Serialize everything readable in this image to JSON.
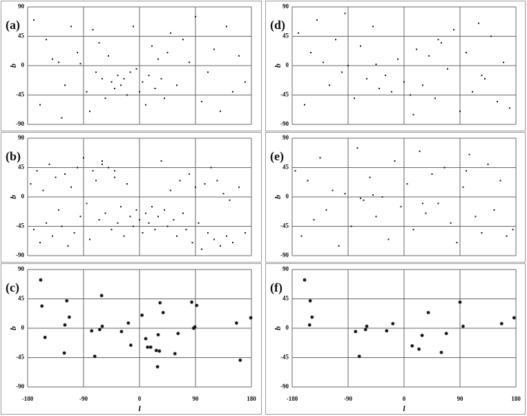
{
  "chart_data": [
    {
      "type": "scatter",
      "label": "(a)",
      "y_label": "b",
      "show_xtick_labels": false,
      "marker": "dot",
      "color": "#111111",
      "xlim": [
        -180,
        180
      ],
      "ylim": [
        -90,
        90
      ],
      "xticks": [
        -180,
        -90,
        0,
        90,
        180
      ],
      "yticks": [
        -90,
        -45,
        0,
        45,
        90
      ],
      "x": [
        -170,
        -160,
        -150,
        -140,
        -130,
        -120,
        -110,
        -100,
        -95,
        -85,
        -80,
        -75,
        -70,
        -65,
        -60,
        -55,
        -50,
        -45,
        -40,
        -35,
        -30,
        -25,
        -20,
        -15,
        -10,
        -5,
        0,
        5,
        10,
        15,
        20,
        25,
        30,
        35,
        40,
        45,
        50,
        60,
        70,
        80,
        90,
        100,
        110,
        120,
        130,
        140,
        150,
        160,
        170,
        -125
      ],
      "y": [
        70,
        -60,
        40,
        10,
        5,
        -30,
        60,
        20,
        3,
        -40,
        -70,
        55,
        -10,
        35,
        -20,
        -50,
        15,
        -25,
        -35,
        -15,
        -30,
        -20,
        -45,
        -10,
        60,
        -5,
        -40,
        -25,
        -60,
        -15,
        30,
        -35,
        10,
        -20,
        -50,
        20,
        50,
        -30,
        40,
        5,
        75,
        -55,
        -10,
        25,
        -70,
        60,
        -40,
        15,
        -25,
        -80
      ]
    },
    {
      "type": "scatter",
      "label": "(b)",
      "y_label": "b",
      "show_xtick_labels": false,
      "marker": "dot",
      "color": "#111111",
      "xlim": [
        -180,
        180
      ],
      "ylim": [
        -90,
        90
      ],
      "xticks": [
        -180,
        -90,
        0,
        90,
        180
      ],
      "yticks": [
        -90,
        -45,
        0,
        45,
        90
      ],
      "x": [
        -175,
        -170,
        -165,
        -160,
        -155,
        -150,
        -145,
        -140,
        -135,
        -130,
        -125,
        -120,
        -115,
        -110,
        -105,
        -100,
        -95,
        -90,
        -85,
        -80,
        -75,
        -70,
        -65,
        -60,
        -55,
        -50,
        -45,
        -40,
        -35,
        -30,
        -25,
        -20,
        -15,
        -10,
        -5,
        0,
        5,
        10,
        15,
        20,
        25,
        30,
        35,
        40,
        45,
        50,
        55,
        60,
        65,
        70,
        75,
        80,
        85,
        90,
        95,
        100,
        105,
        110,
        115,
        120,
        125,
        130,
        135,
        140,
        145,
        150,
        160,
        170,
        -60,
        -40
      ],
      "y": [
        20,
        -50,
        40,
        -70,
        10,
        -40,
        50,
        -60,
        30,
        -20,
        -45,
        35,
        -75,
        15,
        -55,
        45,
        -30,
        60,
        -10,
        -65,
        40,
        25,
        -35,
        55,
        -25,
        45,
        -50,
        30,
        -40,
        -15,
        -60,
        20,
        -30,
        -45,
        -20,
        -35,
        -55,
        -25,
        -40,
        -15,
        -50,
        -30,
        55,
        -20,
        -45,
        10,
        -35,
        -60,
        25,
        -25,
        -50,
        35,
        -70,
        15,
        -40,
        -80,
        20,
        -55,
        45,
        -65,
        25,
        -75,
        5,
        -60,
        -5,
        -70,
        15,
        -55,
        50,
        40
      ]
    },
    {
      "type": "scatter",
      "label": "(c)",
      "y_label": "b",
      "x_label": "l",
      "show_xtick_labels": true,
      "marker": "star",
      "color": "#111111",
      "xlim": [
        -180,
        180
      ],
      "ylim": [
        -90,
        90
      ],
      "xticks": [
        -180,
        -90,
        0,
        90,
        180
      ],
      "yticks": [
        -90,
        -45,
        0,
        45,
        90
      ],
      "x": [
        -159,
        -157,
        -152,
        -117,
        -120,
        -113,
        -121,
        -61,
        -60,
        -64,
        -77,
        -72,
        -29,
        -18,
        -14,
        4,
        10,
        13,
        18,
        27,
        32,
        33,
        38,
        29,
        30,
        57,
        62,
        84,
        92,
        89,
        87,
        156,
        162,
        179
      ],
      "y": [
        74,
        34,
        -14,
        42,
        5,
        17,
        -38,
        50,
        3,
        -2,
        -4,
        -43,
        -5,
        8,
        -26,
        20,
        -16,
        -29,
        -29,
        -34,
        -35,
        39,
        24,
        -59,
        -10,
        -39,
        -8,
        40,
        35,
        2,
        0,
        8,
        -49,
        16
      ]
    },
    {
      "type": "scatter",
      "label": "(d)",
      "y_label": "b",
      "show_xtick_labels": false,
      "marker": "dot",
      "color": "#111111",
      "xlim": [
        -180,
        180
      ],
      "ylim": [
        -90,
        90
      ],
      "xticks": [
        -180,
        -90,
        0,
        90,
        180
      ],
      "yticks": [
        -90,
        -45,
        0,
        45,
        90
      ],
      "x": [
        -170,
        -160,
        -150,
        -140,
        -130,
        -120,
        -110,
        -100,
        -90,
        -80,
        -70,
        -60,
        -50,
        -40,
        -30,
        -20,
        -10,
        0,
        10,
        20,
        30,
        40,
        50,
        60,
        70,
        80,
        90,
        100,
        110,
        120,
        130,
        140,
        150,
        160,
        170,
        -95,
        -45,
        15,
        55,
        125
      ],
      "y": [
        50,
        -60,
        20,
        70,
        5,
        -30,
        40,
        -10,
        0,
        -50,
        30,
        -20,
        60,
        -35,
        -15,
        -40,
        10,
        -25,
        -45,
        25,
        -30,
        15,
        -50,
        35,
        -5,
        55,
        -70,
        20,
        -40,
        65,
        -20,
        45,
        -55,
        5,
        -65,
        80,
        2,
        -75,
        40,
        -15
      ]
    },
    {
      "type": "scatter",
      "label": "(e)",
      "y_label": "b",
      "show_xtick_labels": false,
      "marker": "dot",
      "color": "#111111",
      "xlim": [
        -180,
        180
      ],
      "ylim": [
        -90,
        90
      ],
      "xticks": [
        -180,
        -90,
        0,
        90,
        180
      ],
      "yticks": [
        -90,
        -45,
        0,
        45,
        90
      ],
      "x": [
        -175,
        -165,
        -155,
        -145,
        -135,
        -125,
        -115,
        -105,
        -95,
        -85,
        -75,
        -65,
        -55,
        -45,
        -35,
        -25,
        -15,
        -5,
        5,
        15,
        25,
        35,
        45,
        55,
        65,
        75,
        85,
        95,
        105,
        115,
        125,
        135,
        145,
        155,
        165,
        175,
        -70,
        -50,
        30,
        100
      ],
      "y": [
        40,
        -60,
        25,
        -35,
        60,
        -20,
        10,
        -75,
        5,
        -45,
        75,
        -5,
        30,
        -30,
        0,
        -65,
        55,
        -15,
        20,
        -50,
        70,
        -25,
        35,
        -10,
        45,
        -40,
        -70,
        15,
        65,
        -30,
        -55,
        50,
        -20,
        25,
        -60,
        -50,
        -2,
        3,
        -10,
        40
      ]
    },
    {
      "type": "scatter",
      "label": "(f)",
      "y_label": "b",
      "x_label": "l",
      "show_xtick_labels": true,
      "marker": "star",
      "color": "#111111",
      "xlim": [
        -180,
        180
      ],
      "ylim": [
        -90,
        90
      ],
      "xticks": [
        -180,
        -90,
        0,
        90,
        180
      ],
      "yticks": [
        -90,
        -45,
        0,
        45,
        90
      ],
      "x": [
        -160,
        -151,
        -148,
        -152,
        -78,
        -72,
        -62,
        -60,
        -28,
        -18,
        13,
        24,
        29,
        39,
        60,
        68,
        90,
        95,
        157,
        177
      ],
      "y": [
        74,
        42,
        17,
        5,
        -5,
        -43,
        -2,
        3,
        -4,
        7,
        -27,
        -32,
        -11,
        24,
        -37,
        -8,
        40,
        3,
        7,
        16
      ]
    }
  ]
}
